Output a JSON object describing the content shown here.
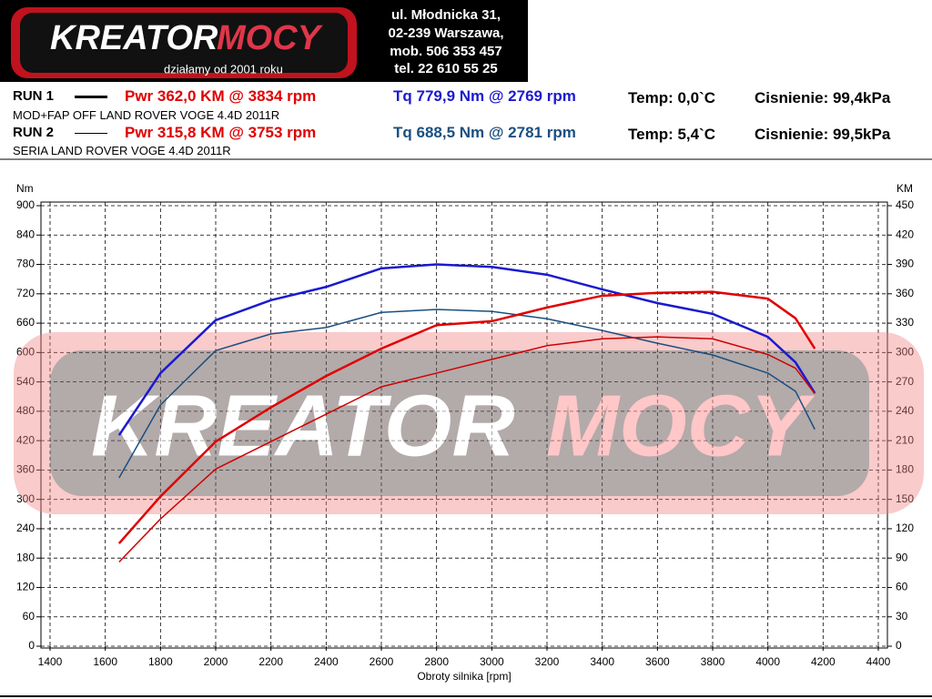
{
  "header": {
    "logo": {
      "word1": "KREATOR",
      "word2": "MOCY",
      "slogan": "działamy od 2001 roku"
    },
    "address": [
      "ul. Młodnicka 31,",
      "02-239  Warszawa,",
      "mob.  506 353 457",
      "tel.  22 610 55 25"
    ],
    "runs": [
      {
        "label": "RUN 1",
        "power": "Pwr  362,0 KM @ 3834 rpm",
        "torque": "Tq 779,9 Nm @ 2769 rpm",
        "temp": "Temp: 0,0`C",
        "pressure": "Cisnienie: 99,4kPa",
        "description": "MOD+FAP OFF LAND ROVER VOGE 4.4D 2011R"
      },
      {
        "label": "RUN 2",
        "power": "Pwr  315,8 KM @ 3753 rpm",
        "torque": "Tq 688,5 Nm @ 2781 rpm",
        "temp": "Temp: 5,4`C",
        "pressure": "Cisnienie: 99,5kPa",
        "description": "SERIA LAND ROVER VOGE 4.4D 2011R"
      }
    ]
  },
  "chart_data": {
    "type": "line",
    "x_label": "Obroty silnika [rpm]",
    "y_label": "Nm",
    "y2_label": "KM",
    "xlim": [
      1400,
      4400
    ],
    "ylim": [
      0,
      900
    ],
    "y2lim": [
      0,
      450
    ],
    "xticks": [
      1400,
      1600,
      1800,
      2000,
      2200,
      2400,
      2600,
      2800,
      3000,
      3200,
      3400,
      3600,
      3800,
      4000,
      4200,
      4400
    ],
    "yticks": [
      0,
      60,
      120,
      180,
      240,
      300,
      360,
      420,
      480,
      540,
      600,
      660,
      720,
      780,
      840,
      900
    ],
    "y2ticks": [
      0,
      30,
      60,
      90,
      120,
      150,
      180,
      210,
      240,
      270,
      300,
      330,
      360,
      390,
      420,
      450
    ],
    "grid": true,
    "x": [
      1650,
      1800,
      2000,
      2200,
      2400,
      2600,
      2800,
      3000,
      3200,
      3400,
      3600,
      3800,
      4000,
      4100,
      4170
    ],
    "series": [
      {
        "color": "#1a1ad0",
        "width": 2.5,
        "values": [
          431,
          558,
          666,
          707,
          734,
          772,
          780,
          775,
          759,
          729,
          701,
          679,
          632,
          580,
          517
        ]
      },
      {
        "color": "#1a4f80",
        "width": 1.5,
        "values": [
          344,
          493,
          604,
          638,
          651,
          682,
          688,
          684,
          669,
          645,
          619,
          595,
          558,
          521,
          443
        ]
      },
      {
        "color": "#e00000",
        "width": 2.5,
        "axis": "y2",
        "values": [
          105,
          153,
          209,
          244,
          276,
          304,
          328,
          332,
          346,
          358,
          361,
          362,
          355,
          335,
          304
        ]
      },
      {
        "color": "#d00000",
        "width": 1.5,
        "axis": "y2",
        "values": [
          86,
          130,
          181,
          209,
          237,
          265,
          279,
          293,
          307,
          314,
          316,
          314,
          298,
          284,
          258
        ]
      }
    ]
  }
}
